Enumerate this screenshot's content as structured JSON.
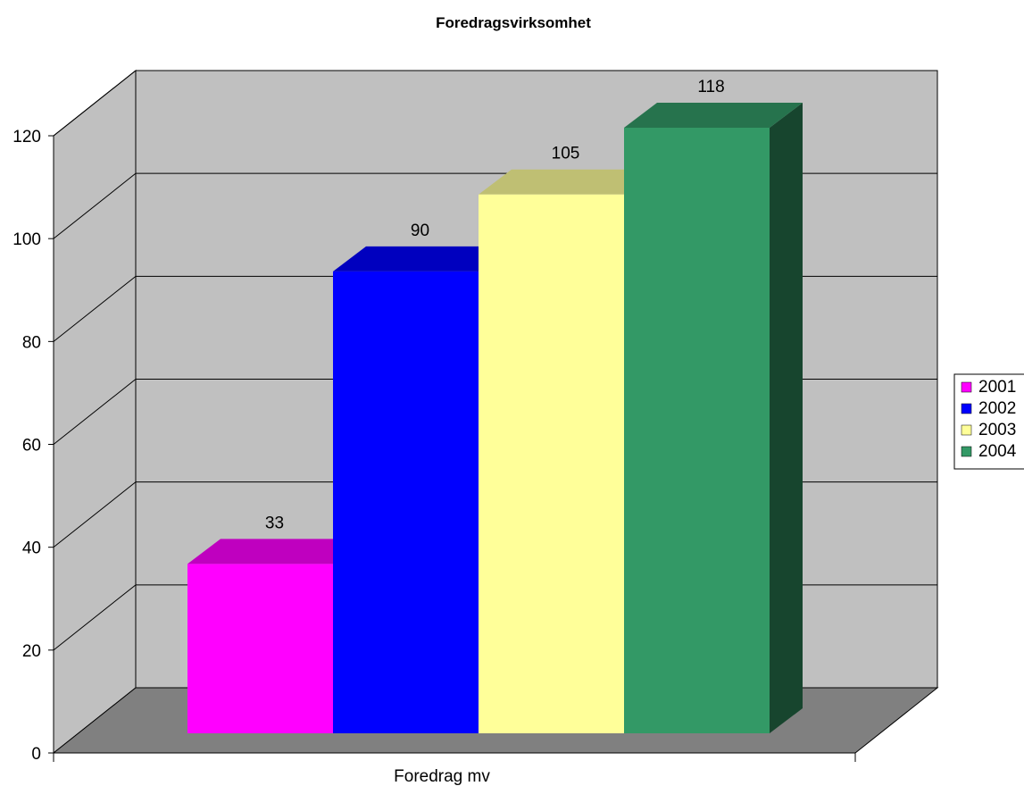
{
  "chart_data": {
    "type": "bar",
    "title": "Foredragsvirksomhet",
    "categories": [
      "Foredrag mv"
    ],
    "series": [
      {
        "name": "2001",
        "values": [
          33
        ],
        "color": "#FF00FF"
      },
      {
        "name": "2002",
        "values": [
          90
        ],
        "color": "#0000FF"
      },
      {
        "name": "2003",
        "values": [
          105
        ],
        "color": "#FFFF99"
      },
      {
        "name": "2004",
        "values": [
          118
        ],
        "color": "#339966"
      }
    ],
    "data_labels": [
      "33",
      "90",
      "105",
      "118"
    ],
    "y_ticks": [
      "0",
      "20",
      "40",
      "60",
      "80",
      "100",
      "120"
    ],
    "ylim": [
      0,
      120
    ],
    "three_d": true,
    "grid": true,
    "legend_position": "right",
    "colors": {
      "wall": "#C0C0C0",
      "floor": "#808080",
      "background": "#FFFFFF"
    }
  }
}
